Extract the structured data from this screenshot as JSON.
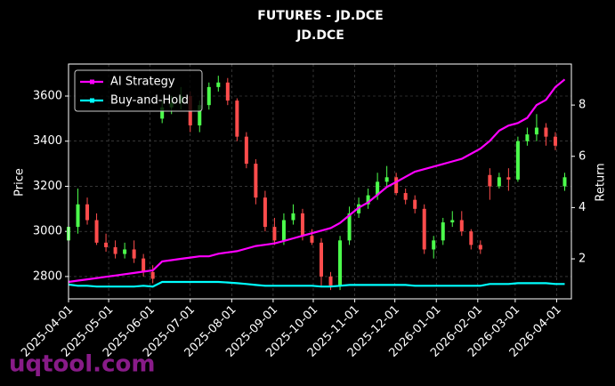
{
  "chart_data": {
    "type": "candlestick",
    "title": "FUTURES - JD.DCE",
    "subtitle": "JD.DCE",
    "ylabel": "Price",
    "y2label": "Return",
    "watermark": "uqtool.com",
    "x": [
      "2025-04-01",
      "2025-04-08",
      "2025-04-15",
      "2025-04-22",
      "2025-04-29",
      "2025-05-06",
      "2025-05-13",
      "2025-05-20",
      "2025-05-27",
      "2025-06-03",
      "2025-06-10",
      "2025-06-17",
      "2025-06-24",
      "2025-07-01",
      "2025-07-08",
      "2025-07-15",
      "2025-07-22",
      "2025-07-29",
      "2025-08-05",
      "2025-08-12",
      "2025-08-19",
      "2025-08-26",
      "2025-09-02",
      "2025-09-09",
      "2025-09-16",
      "2025-09-23",
      "2025-09-30",
      "2025-10-07",
      "2025-10-14",
      "2025-10-21",
      "2025-10-28",
      "2025-11-04",
      "2025-11-11",
      "2025-11-18",
      "2025-11-25",
      "2025-12-02",
      "2025-12-09",
      "2025-12-16",
      "2025-12-23",
      "2025-12-30",
      "2026-01-06",
      "2026-01-13",
      "2026-01-20",
      "2026-01-27",
      "2026-02-03",
      "2026-02-10",
      "2026-02-17",
      "2026-02-24",
      "2026-03-03",
      "2026-03-10",
      "2026-03-17",
      "2026-03-24",
      "2026-03-31",
      "2026-04-07"
    ],
    "open": [
      2960,
      3020,
      3120,
      3050,
      2950,
      2930,
      2900,
      2920,
      2880,
      2820,
      3500,
      3550,
      3570,
      3600,
      3470,
      3560,
      3640,
      3660,
      3580,
      3420,
      3300,
      3150,
      3020,
      2960,
      3050,
      3080,
      2980,
      2950,
      2800,
      2760,
      2960,
      3080,
      3120,
      3160,
      3220,
      3240,
      3170,
      3140,
      3100,
      2920,
      2960,
      3040,
      3050,
      3000,
      2940,
      3250,
      3200,
      3240,
      3230,
      3400,
      3430,
      3460,
      3420,
      3200
    ],
    "high": [
      3060,
      3190,
      3150,
      3080,
      2990,
      2960,
      2950,
      2960,
      2900,
      2850,
      3580,
      3600,
      3640,
      3620,
      3580,
      3660,
      3690,
      3680,
      3590,
      3440,
      3320,
      3180,
      3060,
      3080,
      3120,
      3100,
      3010,
      2970,
      2820,
      2980,
      3110,
      3150,
      3190,
      3260,
      3290,
      3260,
      3190,
      3160,
      3120,
      2980,
      3060,
      3090,
      3090,
      3010,
      2960,
      3280,
      3260,
      3280,
      3420,
      3460,
      3520,
      3480,
      3440,
      3260
    ],
    "low": [
      2940,
      2990,
      3030,
      2940,
      2910,
      2880,
      2880,
      2860,
      2800,
      2770,
      3480,
      3520,
      3540,
      3440,
      3440,
      3540,
      3620,
      3560,
      3400,
      3280,
      3120,
      3000,
      2940,
      2940,
      3030,
      2960,
      2940,
      2760,
      2740,
      2740,
      2940,
      3060,
      3100,
      3140,
      3200,
      3160,
      3120,
      3080,
      2900,
      2880,
      2940,
      3020,
      2980,
      2920,
      2900,
      3140,
      3190,
      3180,
      3220,
      3380,
      3400,
      3380,
      3360,
      3180
    ],
    "close": [
      3020,
      3120,
      3050,
      2950,
      2930,
      2900,
      2920,
      2880,
      2820,
      2790,
      3550,
      3570,
      3600,
      3470,
      3560,
      3640,
      3660,
      3580,
      3420,
      3300,
      3150,
      3020,
      2960,
      3050,
      3080,
      2980,
      2950,
      2800,
      2760,
      2960,
      3080,
      3120,
      3160,
      3220,
      3240,
      3170,
      3140,
      3100,
      2920,
      2960,
      3040,
      3050,
      3000,
      2940,
      2920,
      3200,
      3240,
      3230,
      3400,
      3430,
      3460,
      3420,
      3380,
      3240
    ],
    "up_color": "#4cff4c",
    "down_color": "#ff4c4c",
    "series": [
      {
        "name": "AI Strategy",
        "color": "#ff00ff",
        "axis": "y2",
        "values": [
          1.1,
          1.15,
          1.2,
          1.25,
          1.3,
          1.35,
          1.4,
          1.45,
          1.5,
          1.55,
          1.9,
          1.95,
          2.0,
          2.05,
          2.1,
          2.1,
          2.2,
          2.25,
          2.3,
          2.4,
          2.5,
          2.55,
          2.6,
          2.7,
          2.8,
          2.9,
          3.0,
          3.1,
          3.2,
          3.4,
          3.7,
          4.0,
          4.2,
          4.5,
          4.8,
          5.0,
          5.2,
          5.4,
          5.5,
          5.6,
          5.7,
          5.8,
          5.9,
          6.1,
          6.3,
          6.6,
          7.0,
          7.2,
          7.3,
          7.5,
          8.0,
          8.2,
          8.7,
          9.0
        ]
      },
      {
        "name": "Buy-and-Hold",
        "color": "#00ffff",
        "axis": "y2",
        "values": [
          1.0,
          0.95,
          0.95,
          0.92,
          0.92,
          0.92,
          0.92,
          0.92,
          0.95,
          0.92,
          1.1,
          1.1,
          1.1,
          1.1,
          1.1,
          1.1,
          1.1,
          1.08,
          1.05,
          1.02,
          0.98,
          0.95,
          0.95,
          0.95,
          0.95,
          0.95,
          0.95,
          0.92,
          0.92,
          0.95,
          0.98,
          0.98,
          0.98,
          0.98,
          0.98,
          0.98,
          0.98,
          0.95,
          0.95,
          0.95,
          0.95,
          0.95,
          0.95,
          0.95,
          0.95,
          1.02,
          1.02,
          1.02,
          1.05,
          1.05,
          1.05,
          1.05,
          1.02,
          1.02
        ]
      }
    ],
    "xlim": [
      "2025-04-01",
      "2026-04-12"
    ],
    "xticks": [
      "2025-04-01",
      "2025-05-01",
      "2025-06-01",
      "2025-07-01",
      "2025-08-01",
      "2025-09-01",
      "2025-10-01",
      "2025-11-01",
      "2025-12-01",
      "2026-01-01",
      "2026-02-01",
      "2026-03-01",
      "2026-04-01"
    ],
    "ylim": [
      2701,
      3742
    ],
    "yticks": [
      2800,
      3000,
      3200,
      3400,
      3600
    ],
    "y2lim": [
      0.44,
      9.6
    ],
    "y2ticks": [
      2,
      4,
      6,
      8
    ],
    "grid": true,
    "legend": "upper left"
  }
}
